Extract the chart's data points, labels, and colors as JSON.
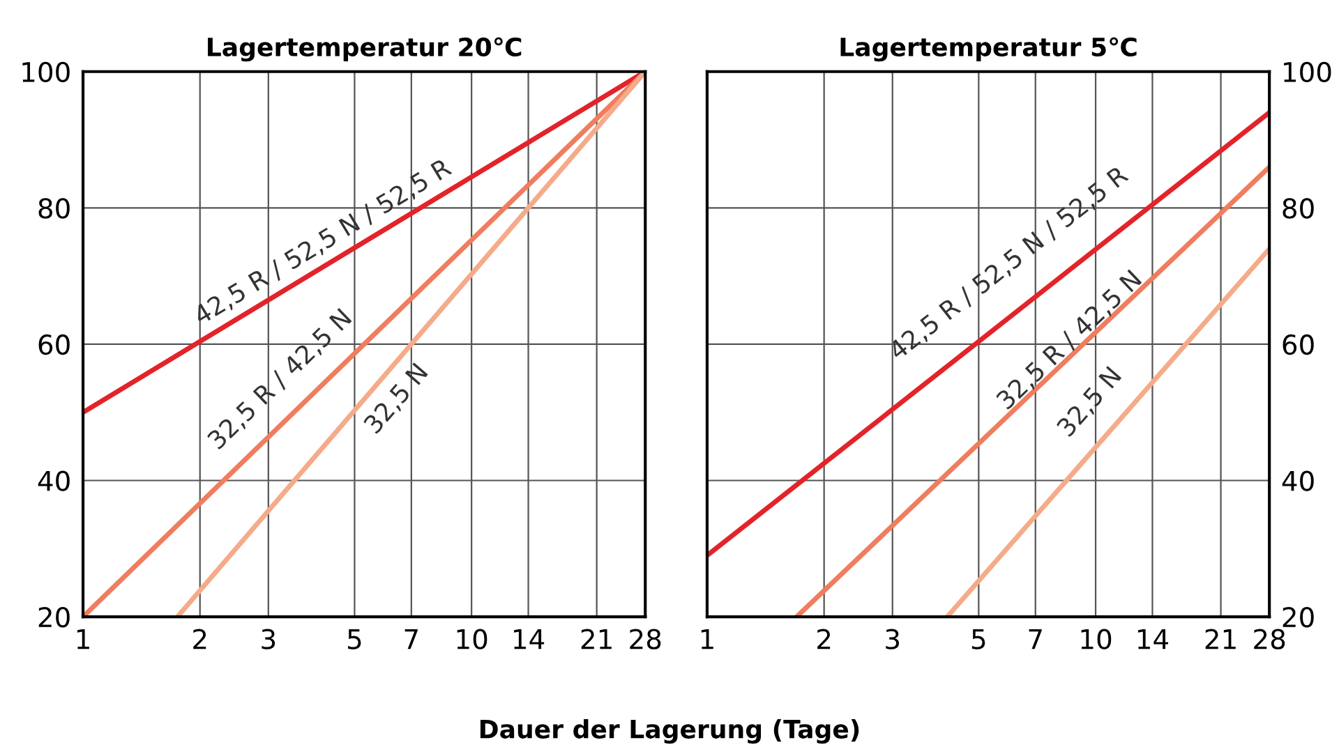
{
  "chart_data": [
    {
      "type": "line",
      "title": "Lagertemperatur 20℃",
      "xlabel": "Dauer der Lagerung (Tage)",
      "log": "x",
      "grid": true,
      "line_style": "solid",
      "xlim": [
        1,
        28
      ],
      "ylim": [
        20,
        100
      ],
      "xticks": [
        1,
        2,
        3,
        5,
        7,
        10,
        14,
        21,
        28
      ],
      "yticks": [
        20,
        40,
        60,
        80,
        100
      ],
      "series": [
        {
          "name": "42,5 R / 52,5 N / 52,5 R",
          "color": "#e3232a",
          "x": [
            1,
            28
          ],
          "values": [
            50,
            100
          ]
        },
        {
          "name": "32,5 R / 42,5 N",
          "color": "#ef7d5e",
          "x": [
            1,
            28
          ],
          "values": [
            20,
            100
          ]
        },
        {
          "name": "32,5 N",
          "color": "#f5ab8a",
          "x": [
            1.75,
            28
          ],
          "values": [
            20,
            100
          ]
        }
      ]
    },
    {
      "type": "line",
      "title": "Lagertemperatur 5℃",
      "log": "x",
      "grid": true,
      "line_style": "solid",
      "xlim": [
        1,
        28
      ],
      "ylim": [
        20,
        100
      ],
      "xticks": [
        1,
        2,
        3,
        5,
        7,
        10,
        14,
        21,
        28
      ],
      "yticks": [
        20,
        40,
        60,
        80,
        100
      ],
      "series": [
        {
          "name": "42,5 R / 52,5 N / 52,5 R",
          "color": "#e3232a",
          "x": [
            1,
            28
          ],
          "values": [
            29,
            94
          ]
        },
        {
          "name": "32,5 R / 42,5 N",
          "color": "#ef7d5e",
          "x": [
            1.7,
            28
          ],
          "values": [
            20,
            86
          ]
        },
        {
          "name": "32,5 N",
          "color": "#f5ab8a",
          "x": [
            4.15,
            28
          ],
          "values": [
            20,
            74
          ]
        }
      ]
    }
  ]
}
